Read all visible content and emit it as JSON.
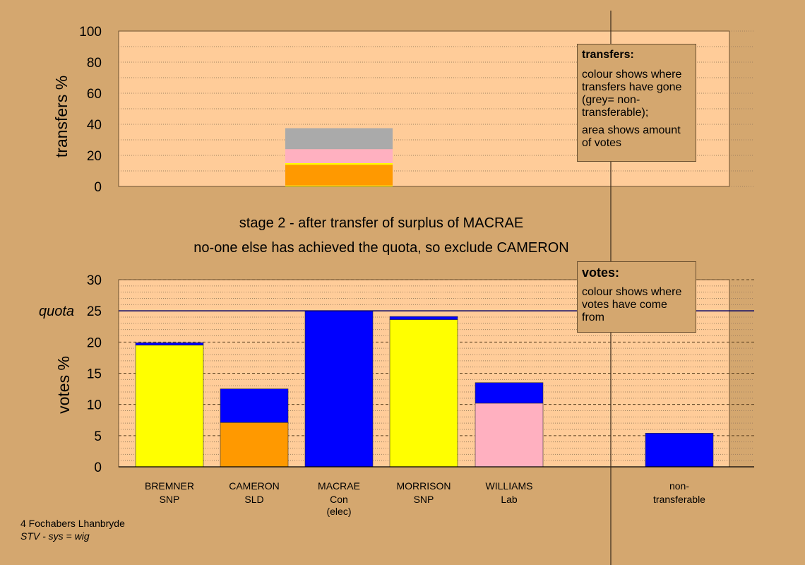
{
  "stage": {
    "line1": "stage 2 - after transfer of surplus of MACRAE",
    "line2": "no-one else has achieved the quota, so exclude CAMERON"
  },
  "legend_transfers": {
    "title": "transfers:",
    "line1": "colour shows where transfers have gone (grey= non-transferable);",
    "line2": "area shows amount of votes"
  },
  "legend_votes": {
    "title": "votes:",
    "line1": "colour shows where votes have come from"
  },
  "footer": {
    "line1": "4 Fochabers Lhanbryde",
    "line2": "STV - sys = wig"
  },
  "colors": {
    "background": "#d4a76f",
    "plot_area": "#ffcc99",
    "snp": "#ffff00",
    "sld": "#ff9900",
    "con": "#0000ff",
    "lab": "#ffb0c0",
    "non_transferable": "#aaaaaa"
  },
  "chart_data": [
    {
      "type": "bar",
      "stacked": true,
      "ylabel": "transfers %",
      "ylim": [
        0,
        100
      ],
      "yticks": [
        0,
        20,
        40,
        60,
        80,
        100
      ],
      "grid": true,
      "bars": [
        {
          "column": "MACRAE",
          "segments": [
            {
              "label": "SNP",
              "color": "#ffff00",
              "from": 0,
              "to": 0.6
            },
            {
              "label": "SLD",
              "color": "#ff9900",
              "from": 0.6,
              "to": 14.0
            },
            {
              "label": "SNP",
              "color": "#ffff00",
              "from": 14.0,
              "to": 15.0
            },
            {
              "label": "Lab",
              "color": "#ffb0c0",
              "from": 15.0,
              "to": 24.0
            },
            {
              "label": "non-transferable",
              "color": "#aaaaaa",
              "from": 24.0,
              "to": 37.5
            }
          ]
        }
      ]
    },
    {
      "type": "bar",
      "stacked": true,
      "ylabel": "votes %",
      "ylim": [
        0,
        30
      ],
      "yticks": [
        0,
        5,
        10,
        15,
        20,
        25,
        30
      ],
      "quota": 25,
      "quota_label": "quota",
      "grid": true,
      "categories": [
        {
          "name": "BREMNER",
          "party": "SNP",
          "note": ""
        },
        {
          "name": "CAMERON",
          "party": "SLD",
          "note": ""
        },
        {
          "name": "MACRAE",
          "party": "Con",
          "note": "(elec)"
        },
        {
          "name": "MORRISON",
          "party": "SNP",
          "note": ""
        },
        {
          "name": "WILLIAMS",
          "party": "Lab",
          "note": ""
        },
        {
          "name": "non-transferable",
          "party": "",
          "note": ""
        }
      ],
      "bars": [
        {
          "candidate": "BREMNER",
          "segments": [
            {
              "color": "#ffff00",
              "value": 19.5
            },
            {
              "color": "#0000ff",
              "value": 0.4
            }
          ]
        },
        {
          "candidate": "CAMERON",
          "segments": [
            {
              "color": "#ff9900",
              "value": 7.1
            },
            {
              "color": "#0000ff",
              "value": 5.4
            }
          ]
        },
        {
          "candidate": "MACRAE",
          "segments": [
            {
              "color": "#0000ff",
              "value": 25.0
            }
          ]
        },
        {
          "candidate": "MORRISON",
          "segments": [
            {
              "color": "#ffff00",
              "value": 23.6
            },
            {
              "color": "#0000ff",
              "value": 0.5
            }
          ]
        },
        {
          "candidate": "WILLIAMS",
          "segments": [
            {
              "color": "#ffb0c0",
              "value": 10.2
            },
            {
              "color": "#0000ff",
              "value": 3.3
            }
          ]
        },
        {
          "candidate": "non-transferable",
          "segments": [
            {
              "color": "#0000ff",
              "value": 5.4
            }
          ]
        }
      ]
    }
  ]
}
